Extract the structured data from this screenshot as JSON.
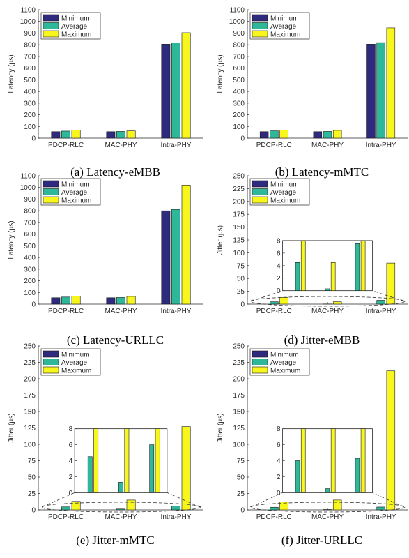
{
  "figure": {
    "legend": [
      "Minimum",
      "Average",
      "Maximum"
    ],
    "categories": [
      "PDCP-RLC",
      "MAC-PHY",
      "Intra-PHY"
    ],
    "colors": {
      "minimum": "#2e2a7e",
      "average": "#2fb79a",
      "maximum": "#f7f71e",
      "axis": "#262626",
      "grid_text": "#262626"
    }
  },
  "chart_data": [
    {
      "type": "bar",
      "caption": "(a)  Latency-eMBB",
      "ylabel": "Latency (μs)",
      "categories": [
        "PDCP-RLC",
        "MAC-PHY",
        "Intra-PHY"
      ],
      "ylim": [
        0,
        1100
      ],
      "yticks": [
        0,
        100,
        200,
        300,
        400,
        500,
        600,
        700,
        800,
        900,
        1000,
        1100
      ],
      "legend_position": "top-left",
      "series": [
        {
          "name": "Minimum",
          "values": [
            55,
            55,
            805
          ]
        },
        {
          "name": "Average",
          "values": [
            60,
            57,
            815
          ]
        },
        {
          "name": "Maximum",
          "values": [
            68,
            62,
            903
          ]
        }
      ]
    },
    {
      "type": "bar",
      "caption": "(b)  Latency-mMTC",
      "ylabel": "Latency (μs)",
      "categories": [
        "PDCP-RLC",
        "MAC-PHY",
        "Intra-PHY"
      ],
      "ylim": [
        0,
        1100
      ],
      "yticks": [
        0,
        100,
        200,
        300,
        400,
        500,
        600,
        700,
        800,
        900,
        1000,
        1100
      ],
      "legend_position": "top-left",
      "series": [
        {
          "name": "Minimum",
          "values": [
            55,
            55,
            805
          ]
        },
        {
          "name": "Average",
          "values": [
            62,
            57,
            818
          ]
        },
        {
          "name": "Maximum",
          "values": [
            68,
            66,
            945
          ]
        }
      ]
    },
    {
      "type": "bar",
      "caption": "(c)  Latency-URLLC",
      "ylabel": "Latency (μs)",
      "categories": [
        "PDCP-RLC",
        "MAC-PHY",
        "Intra-PHY"
      ],
      "ylim": [
        0,
        1100
      ],
      "yticks": [
        0,
        100,
        200,
        300,
        400,
        500,
        600,
        700,
        800,
        900,
        1000,
        1100
      ],
      "legend_position": "top-left",
      "series": [
        {
          "name": "Minimum",
          "values": [
            55,
            55,
            800
          ]
        },
        {
          "name": "Average",
          "values": [
            61,
            57,
            812
          ]
        },
        {
          "name": "Maximum",
          "values": [
            68,
            66,
            1020
          ]
        }
      ]
    },
    {
      "type": "bar",
      "caption": "(d)  Jitter-eMBB",
      "ylabel": "Jitter (μs)",
      "categories": [
        "PDCP-RLC",
        "MAC-PHY",
        "Intra-PHY"
      ],
      "ylim": [
        0,
        250
      ],
      "yticks": [
        0,
        25,
        50,
        75,
        100,
        125,
        150,
        175,
        200,
        225,
        250
      ],
      "legend_position": "top-left",
      "series": [
        {
          "name": "Minimum",
          "values": [
            0,
            0,
            0
          ]
        },
        {
          "name": "Average",
          "values": [
            4.5,
            0.3,
            7.5
          ]
        },
        {
          "name": "Maximum",
          "values": [
            13,
            4.5,
            80
          ]
        }
      ],
      "inset": {
        "ylim": [
          0,
          8
        ],
        "yticks": [
          0,
          2,
          4,
          6,
          8
        ],
        "clip": 8
      }
    },
    {
      "type": "bar",
      "caption": "(e)  Jitter-mMTC",
      "ylabel": "Jitter (μs)",
      "categories": [
        "PDCP-RLC",
        "MAC-PHY",
        "Intra-PHY"
      ],
      "ylim": [
        0,
        250
      ],
      "yticks": [
        0,
        25,
        50,
        75,
        100,
        125,
        150,
        175,
        200,
        225,
        250
      ],
      "legend_position": "top-left",
      "series": [
        {
          "name": "Minimum",
          "values": [
            0,
            0,
            0
          ]
        },
        {
          "name": "Average",
          "values": [
            4.5,
            1.3,
            6
          ]
        },
        {
          "name": "Maximum",
          "values": [
            13,
            15,
            127
          ]
        }
      ],
      "inset": {
        "ylim": [
          0,
          8
        ],
        "yticks": [
          0,
          2,
          4,
          6,
          8
        ],
        "clip": 8
      }
    },
    {
      "type": "bar",
      "caption": "(f)  Jitter-URLLC",
      "ylabel": "Jitter (μs)",
      "categories": [
        "PDCP-RLC",
        "MAC-PHY",
        "Intra-PHY"
      ],
      "ylim": [
        0,
        250
      ],
      "yticks": [
        0,
        25,
        50,
        75,
        100,
        125,
        150,
        175,
        200,
        225,
        250
      ],
      "legend_position": "top-left",
      "series": [
        {
          "name": "Minimum",
          "values": [
            0,
            0,
            0
          ]
        },
        {
          "name": "Average",
          "values": [
            4,
            0.5,
            4.3
          ]
        },
        {
          "name": "Maximum",
          "values": [
            12,
            15,
            212
          ]
        }
      ],
      "inset": {
        "ylim": [
          0,
          8
        ],
        "yticks": [
          0,
          2,
          4,
          6,
          8
        ],
        "clip": 8
      }
    }
  ]
}
